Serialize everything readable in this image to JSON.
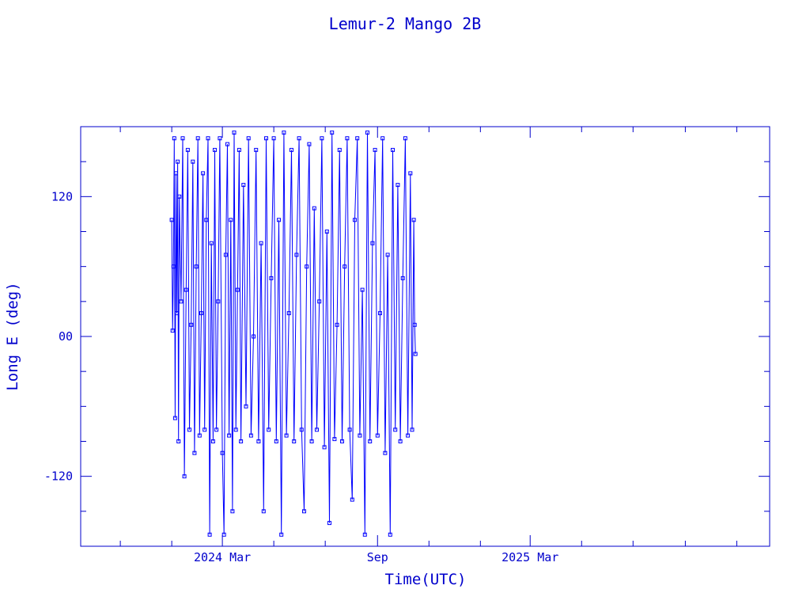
{
  "chart_data": {
    "type": "scatter",
    "title": "Lemur-2 Mango 2B",
    "xlabel": "Time(UTC)",
    "ylabel": "Long E (deg)",
    "ylim": [
      -180,
      180
    ],
    "xlim": [
      "2023-09-15",
      "2025-12-10"
    ],
    "y_ticks": [
      {
        "value": 120,
        "label": "120"
      },
      {
        "value": 0,
        "label": "00"
      },
      {
        "value": -120,
        "label": "-120"
      }
    ],
    "x_ticks": [
      {
        "value": "2024-03-01",
        "label": "2024 Mar"
      },
      {
        "value": "2024-09-01",
        "label": "Sep"
      },
      {
        "value": "2025-03-01",
        "label": "2025 Mar"
      }
    ],
    "grid": false,
    "color": "#0000ff",
    "markers": "small open squares joined by lines",
    "series": [
      {
        "x": [
          "2024-01-01",
          "2024-01-02",
          "2024-01-03",
          "2024-01-04",
          "2024-01-05",
          "2024-01-06",
          "2024-01-07",
          "2024-01-08",
          "2024-01-09",
          "2024-01-10",
          "2024-01-12",
          "2024-01-14",
          "2024-01-16",
          "2024-01-18",
          "2024-01-20",
          "2024-01-22",
          "2024-01-24",
          "2024-01-26",
          "2024-01-28",
          "2024-01-30",
          "2024-02-01",
          "2024-02-03",
          "2024-02-05",
          "2024-02-07",
          "2024-02-09",
          "2024-02-11",
          "2024-02-13",
          "2024-02-15",
          "2024-02-17",
          "2024-02-19",
          "2024-02-21",
          "2024-02-23",
          "2024-02-25",
          "2024-02-27",
          "2024-03-01",
          "2024-03-03",
          "2024-03-05",
          "2024-03-07",
          "2024-03-09",
          "2024-03-11",
          "2024-03-13",
          "2024-03-15",
          "2024-03-17",
          "2024-03-19",
          "2024-03-21",
          "2024-03-23",
          "2024-03-26",
          "2024-03-29",
          "2024-04-01",
          "2024-04-04",
          "2024-04-07",
          "2024-04-10",
          "2024-04-13",
          "2024-04-16",
          "2024-04-19",
          "2024-04-22",
          "2024-04-25",
          "2024-04-28",
          "2024-05-01",
          "2024-05-04",
          "2024-05-07",
          "2024-05-10",
          "2024-05-13",
          "2024-05-16",
          "2024-05-19",
          "2024-05-22",
          "2024-05-25",
          "2024-05-28",
          "2024-05-31",
          "2024-06-03",
          "2024-06-06",
          "2024-06-09",
          "2024-06-12",
          "2024-06-15",
          "2024-06-18",
          "2024-06-21",
          "2024-06-24",
          "2024-06-27",
          "2024-06-30",
          "2024-07-03",
          "2024-07-06",
          "2024-07-09",
          "2024-07-12",
          "2024-07-15",
          "2024-07-18",
          "2024-07-21",
          "2024-07-24",
          "2024-07-27",
          "2024-07-30",
          "2024-08-02",
          "2024-08-05",
          "2024-08-08",
          "2024-08-11",
          "2024-08-14",
          "2024-08-17",
          "2024-08-20",
          "2024-08-23",
          "2024-08-26",
          "2024-08-29",
          "2024-09-01",
          "2024-09-04",
          "2024-09-07",
          "2024-09-10",
          "2024-09-13",
          "2024-09-16",
          "2024-09-19",
          "2024-09-22",
          "2024-09-25",
          "2024-09-28",
          "2024-10-01",
          "2024-10-04",
          "2024-10-07",
          "2024-10-10",
          "2024-10-12",
          "2024-10-14",
          "2024-10-15",
          "2024-10-16"
        ],
        "y": [
          100,
          5,
          60,
          170,
          -70,
          140,
          20,
          150,
          -90,
          120,
          30,
          170,
          -120,
          40,
          160,
          -80,
          10,
          150,
          -100,
          60,
          170,
          -85,
          20,
          140,
          -80,
          100,
          170,
          -170,
          80,
          -90,
          160,
          -80,
          30,
          170,
          -100,
          -170,
          70,
          165,
          -85,
          100,
          -150,
          175,
          -80,
          40,
          160,
          -90,
          130,
          -60,
          170,
          -85,
          0,
          160,
          -90,
          80,
          -150,
          170,
          -80,
          50,
          170,
          -90,
          100,
          -170,
          175,
          -85,
          20,
          160,
          -90,
          70,
          170,
          -80,
          -150,
          60,
          165,
          -90,
          110,
          -80,
          30,
          170,
          -95,
          90,
          -160,
          175,
          -88,
          10,
          160,
          -90,
          60,
          170,
          -80,
          -140,
          100,
          170,
          -85,
          40,
          -170,
          175,
          -90,
          80,
          160,
          -85,
          20,
          170,
          -100,
          70,
          -170,
          160,
          -80,
          130,
          -90,
          50,
          170,
          -85,
          140,
          -80,
          100,
          10,
          -15
        ]
      }
    ]
  }
}
